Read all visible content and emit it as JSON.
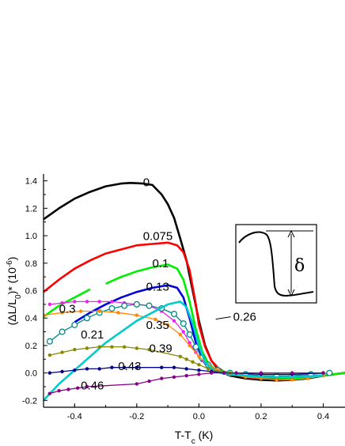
{
  "chart_data": {
    "type": "line",
    "xlabel": "T-T",
    "xlabel_sub": "c",
    "xlabel_unit": " (K)",
    "ylabel_parts": [
      "(ΔL/L",
      "0",
      ")* (10",
      "-6",
      ")"
    ],
    "xlim": [
      -0.5,
      0.47
    ],
    "ylim": [
      -0.25,
      1.45
    ],
    "x_ticks": [
      -0.4,
      -0.2,
      0.0,
      0.2,
      0.4
    ],
    "x_tick_labels": [
      "-0.4",
      "-0.2",
      "0.0",
      "0.2",
      "0.4"
    ],
    "y_ticks": [
      -0.2,
      0.0,
      0.2,
      0.4,
      0.6,
      0.8,
      1.0,
      1.2,
      1.4
    ],
    "y_tick_labels": [
      "-0.2",
      "0.0",
      "0.2",
      "0.4",
      "0.6",
      "0.8",
      "1.0",
      "1.2",
      "1.4"
    ],
    "series": [
      {
        "label": "0",
        "color": "#000000",
        "marker": "none",
        "x": [
          -0.5,
          -0.45,
          -0.4,
          -0.35,
          -0.3,
          -0.25,
          -0.22,
          -0.18,
          -0.15,
          -0.12,
          -0.1,
          -0.08,
          -0.06,
          -0.04,
          -0.02,
          0.0,
          0.02,
          0.04,
          0.06,
          0.08,
          0.1,
          0.15,
          0.2,
          0.25,
          0.3,
          0.35,
          0.4,
          0.47
        ],
        "y": [
          1.12,
          1.2,
          1.27,
          1.32,
          1.36,
          1.38,
          1.385,
          1.38,
          1.37,
          1.3,
          1.23,
          1.13,
          0.98,
          0.82,
          0.6,
          0.38,
          0.2,
          0.09,
          0.03,
          0.0,
          -0.02,
          -0.04,
          -0.05,
          -0.055,
          -0.05,
          -0.04,
          -0.02,
          0.0
        ]
      },
      {
        "label": "0.075",
        "color": "#ff0000",
        "marker": "none",
        "x": [
          -0.5,
          -0.45,
          -0.4,
          -0.35,
          -0.3,
          -0.25,
          -0.2,
          -0.15,
          -0.1,
          -0.07,
          -0.05,
          -0.03,
          -0.01,
          0.0,
          0.02,
          0.04,
          0.06,
          0.08,
          0.1,
          0.15,
          0.2,
          0.3,
          0.4,
          0.47
        ],
        "y": [
          0.59,
          0.68,
          0.76,
          0.82,
          0.87,
          0.9,
          0.93,
          0.94,
          0.95,
          0.93,
          0.88,
          0.75,
          0.5,
          0.35,
          0.19,
          0.09,
          0.04,
          0.01,
          0.0,
          -0.03,
          -0.04,
          -0.04,
          -0.02,
          0.0
        ]
      },
      {
        "label": "0.1",
        "color": "#00ee00",
        "marker": "none",
        "x": [
          -0.5,
          -0.45,
          -0.4,
          -0.35,
          -0.32,
          -0.3,
          -0.25,
          -0.2,
          -0.15,
          -0.1,
          -0.07,
          -0.05,
          -0.03,
          -0.01,
          0.01,
          0.03,
          0.05,
          0.08,
          0.1,
          0.15,
          0.2,
          0.3,
          0.4,
          0.47
        ],
        "y": [
          0.41,
          0.49,
          0.55,
          0.61,
          null,
          0.65,
          0.7,
          0.74,
          0.77,
          0.79,
          0.76,
          0.68,
          0.52,
          0.32,
          0.16,
          0.07,
          0.03,
          0.01,
          0.0,
          -0.02,
          -0.03,
          -0.04,
          -0.02,
          0.0
        ]
      },
      {
        "label": "0.13",
        "color": "#0000dd",
        "marker": "none",
        "x": [
          -0.4,
          -0.35,
          -0.3,
          -0.25,
          -0.2,
          -0.15,
          -0.1,
          -0.07,
          -0.05,
          -0.03,
          -0.01,
          0.01,
          0.03,
          0.06,
          0.1,
          0.15,
          0.2,
          0.3,
          0.4
        ],
        "y": [
          0.37,
          0.44,
          0.5,
          0.55,
          0.59,
          0.62,
          0.64,
          0.62,
          0.55,
          0.4,
          0.22,
          0.1,
          0.04,
          0.01,
          -0.01,
          -0.02,
          -0.03,
          -0.03,
          -0.02
        ]
      },
      {
        "label": "0.3",
        "color": "#ee22ee",
        "marker": "dot",
        "x": [
          -0.48,
          -0.44,
          -0.4,
          -0.36,
          -0.32,
          -0.28,
          -0.24,
          -0.2,
          -0.16,
          -0.12,
          -0.08,
          -0.05,
          -0.03,
          -0.01,
          0.01,
          0.03,
          0.05
        ],
        "y": [
          0.5,
          0.51,
          0.52,
          0.52,
          0.52,
          0.52,
          0.51,
          0.5,
          0.49,
          0.45,
          0.38,
          0.3,
          0.22,
          0.15,
          0.09,
          0.05,
          0.02
        ]
      },
      {
        "label": "0.26",
        "color": "#008888",
        "marker": "circle",
        "x": [
          -0.48,
          -0.44,
          -0.4,
          -0.36,
          -0.32,
          -0.28,
          -0.24,
          -0.2,
          -0.16,
          -0.12,
          -0.08,
          -0.05,
          -0.03,
          -0.01,
          0.01,
          0.03,
          0.06,
          0.1,
          0.15,
          0.2,
          0.25,
          0.3,
          0.36,
          0.42
        ],
        "y": [
          0.23,
          0.3,
          0.35,
          0.4,
          0.44,
          0.47,
          0.49,
          0.5,
          0.49,
          0.47,
          0.43,
          0.36,
          0.28,
          0.19,
          0.11,
          0.06,
          0.02,
          0.0,
          -0.01,
          -0.02,
          -0.02,
          -0.02,
          -0.01,
          0.0
        ]
      },
      {
        "label": "0.35",
        "color": "#ff8800",
        "marker": "dot",
        "x": [
          -0.5,
          -0.44,
          -0.38,
          -0.32,
          -0.26,
          -0.2,
          -0.14,
          -0.1,
          -0.06,
          -0.03,
          0.0,
          0.03,
          0.06,
          0.1,
          0.15,
          0.2,
          0.25,
          0.3,
          0.35,
          0.4
        ],
        "y": [
          0.42,
          0.44,
          0.45,
          0.45,
          0.44,
          0.42,
          0.39,
          0.35,
          0.28,
          0.2,
          0.12,
          0.06,
          0.02,
          -0.01,
          -0.03,
          -0.04,
          -0.05,
          -0.05,
          -0.04,
          -0.02
        ]
      },
      {
        "label": "",
        "color": "#00cccc",
        "marker": "none",
        "x": [
          -0.5,
          -0.45,
          -0.4,
          -0.35,
          -0.3,
          -0.25,
          -0.2,
          -0.15,
          -0.1,
          -0.06,
          -0.04,
          -0.02,
          0.0,
          0.02,
          0.04,
          0.07,
          0.1,
          0.15,
          0.2,
          0.3,
          0.4
        ],
        "y": [
          -0.2,
          -0.08,
          0.02,
          0.12,
          0.22,
          0.3,
          0.38,
          0.44,
          0.5,
          0.52,
          0.48,
          0.36,
          0.2,
          0.08,
          0.03,
          0.0,
          -0.01,
          -0.02,
          -0.03,
          -0.03,
          -0.02
        ]
      },
      {
        "label": "0.39",
        "color": "#888800",
        "marker": "dot",
        "x": [
          -0.48,
          -0.44,
          -0.4,
          -0.36,
          -0.32,
          -0.28,
          -0.24,
          -0.2,
          -0.16,
          -0.06,
          -0.04,
          -0.02,
          0.0,
          0.03,
          0.06,
          0.1,
          0.2,
          0.3,
          0.4
        ],
        "y": [
          0.13,
          0.15,
          0.17,
          0.18,
          0.19,
          0.19,
          0.19,
          0.18,
          0.17,
          0.12,
          0.1,
          0.08,
          0.06,
          0.03,
          0.01,
          0.0,
          -0.01,
          -0.01,
          0.0
        ]
      },
      {
        "label": "0.43",
        "color": "#000088",
        "marker": "dot",
        "x": [
          -0.48,
          -0.44,
          -0.4,
          -0.36,
          -0.32,
          -0.28,
          -0.24,
          -0.2,
          -0.12,
          -0.08,
          -0.04,
          0.0,
          0.04,
          0.08,
          0.12,
          0.2,
          0.3,
          0.4
        ],
        "y": [
          0.0,
          0.01,
          0.02,
          0.03,
          0.03,
          0.04,
          0.04,
          0.04,
          0.04,
          0.04,
          0.03,
          0.02,
          0.01,
          0.0,
          0.0,
          -0.01,
          -0.01,
          0.0
        ]
      },
      {
        "label": "0.46",
        "color": "#880088",
        "marker": "dot",
        "x": [
          -0.48,
          -0.45,
          -0.42,
          -0.39,
          -0.36,
          -0.2,
          -0.16,
          -0.12,
          -0.08,
          -0.04,
          0.0,
          0.04,
          0.08,
          0.12,
          0.2,
          0.3,
          0.4
        ],
        "y": [
          -0.15,
          -0.13,
          -0.12,
          -0.11,
          -0.1,
          -0.08,
          -0.06,
          -0.04,
          -0.03,
          -0.02,
          -0.01,
          0.0,
          0.0,
          0.0,
          0.0,
          0.0,
          0.0
        ]
      }
    ],
    "curve_labels": [
      {
        "text": "0",
        "x": -0.18,
        "y": 1.36
      },
      {
        "text": "0.075",
        "x": -0.18,
        "y": 0.97
      },
      {
        "text": "0.1",
        "x": -0.15,
        "y": 0.77
      },
      {
        "text": "0.13",
        "x": -0.17,
        "y": 0.6
      },
      {
        "text": "0.3",
        "x": -0.45,
        "y": 0.44
      },
      {
        "text": "0.35",
        "x": -0.17,
        "y": 0.32
      },
      {
        "text": "0.21",
        "x": -0.38,
        "y": 0.25
      },
      {
        "text": "0.26",
        "x": 0.11,
        "y": 0.38
      },
      {
        "text": "0.39",
        "x": -0.16,
        "y": 0.15
      },
      {
        "text": "0.43",
        "x": -0.26,
        "y": 0.02
      },
      {
        "text": "0.46",
        "x": -0.38,
        "y": -0.12
      }
    ],
    "inset": {
      "label": "δ"
    }
  }
}
